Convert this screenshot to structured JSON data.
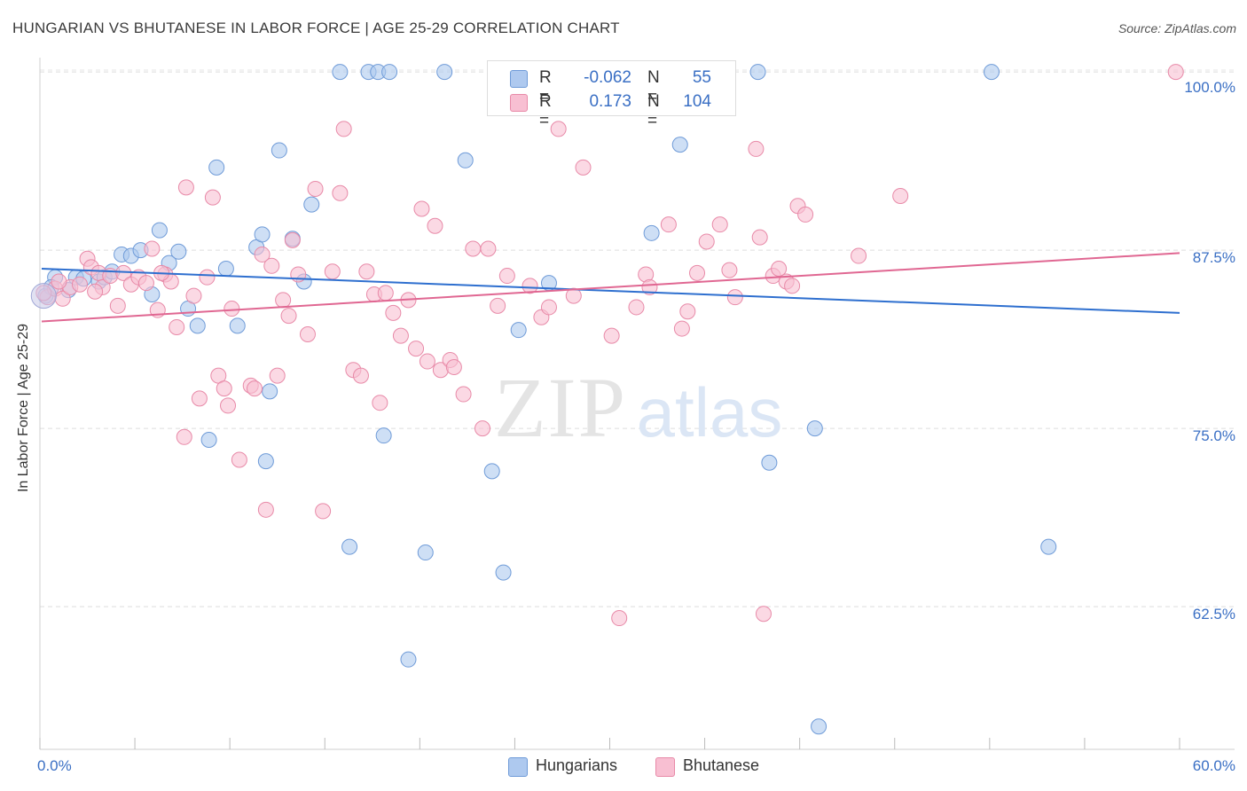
{
  "title": "HUNGARIAN VS BHUTANESE IN LABOR FORCE | AGE 25-29 CORRELATION CHART",
  "source": "Source: ZipAtlas.com",
  "watermark": {
    "zip": "ZIP",
    "atlas": "atlas"
  },
  "legend_top": {
    "rows": [
      {
        "r_label": "R =",
        "r_value": "-0.062",
        "n_label": "N =",
        "n_value": "55",
        "color": "#aec9ef"
      },
      {
        "r_label": "R =",
        "r_value": "0.173",
        "n_label": "N =",
        "n_value": "104",
        "color": "#f8bfd2"
      }
    ]
  },
  "legend_bottom": [
    {
      "label": "Hungarians",
      "color": "#aec9ef"
    },
    {
      "label": "Bhutanese",
      "color": "#f8bfd2"
    }
  ],
  "chart_data": {
    "type": "scatter",
    "title": "HUNGARIAN VS BHUTANESE IN LABOR FORCE | AGE 25-29 CORRELATION CHART",
    "xlabel": "",
    "ylabel": "In Labor Force | Age 25-29",
    "xlim": [
      0,
      60
    ],
    "ylim": [
      52.5,
      101
    ],
    "x_tick_labels": [
      "0.0%",
      "60.0%"
    ],
    "y_tick_labels": [
      "100.0%",
      "87.5%",
      "75.0%",
      "62.5%"
    ],
    "y_ticks": [
      100,
      87.5,
      75,
      62.5
    ],
    "grid": true,
    "legend_position": "top-center",
    "series": [
      {
        "name": "Hungarians",
        "color": "#aec9ef",
        "stroke": "#6f9bd8",
        "trend": {
          "x": [
            0,
            60
          ],
          "y": [
            86.2,
            83.1
          ],
          "color": "#2e6fcf"
        },
        "points": [
          [
            0.3,
            84.3
          ],
          [
            0.8,
            85.6
          ],
          [
            1.9,
            85.6
          ],
          [
            3.1,
            85.3
          ],
          [
            3.4,
            85.6
          ],
          [
            3.8,
            86.0
          ],
          [
            4.3,
            87.2
          ],
          [
            4.8,
            87.1
          ],
          [
            5.3,
            87.5
          ],
          [
            5.9,
            84.4
          ],
          [
            6.3,
            88.9
          ],
          [
            6.8,
            86.6
          ],
          [
            7.3,
            87.4
          ],
          [
            7.8,
            83.4
          ],
          [
            8.3,
            82.2
          ],
          [
            8.9,
            74.2
          ],
          [
            9.3,
            93.3
          ],
          [
            9.8,
            86.2
          ],
          [
            10.4,
            82.2
          ],
          [
            11.4,
            87.7
          ],
          [
            11.7,
            88.6
          ],
          [
            11.9,
            72.7
          ],
          [
            12.1,
            77.6
          ],
          [
            12.6,
            94.5
          ],
          [
            13.3,
            88.3
          ],
          [
            14.3,
            90.7
          ],
          [
            13.9,
            85.3
          ],
          [
            15.8,
            100.0
          ],
          [
            16.3,
            66.7
          ],
          [
            17.3,
            100.0
          ],
          [
            17.8,
            100.0
          ],
          [
            18.1,
            74.5
          ],
          [
            18.4,
            100.0
          ],
          [
            19.4,
            58.8
          ],
          [
            20.3,
            66.3
          ],
          [
            21.3,
            100.0
          ],
          [
            22.4,
            93.8
          ],
          [
            23.8,
            72.0
          ],
          [
            24.4,
            64.9
          ],
          [
            25.2,
            81.9
          ],
          [
            26.8,
            85.2
          ],
          [
            28.3,
            100.0
          ],
          [
            30.4,
            100.0
          ],
          [
            32.2,
            88.7
          ],
          [
            33.7,
            94.9
          ],
          [
            34.3,
            100.0
          ],
          [
            37.8,
            100.0
          ],
          [
            38.4,
            72.6
          ],
          [
            40.8,
            75.0
          ],
          [
            41.0,
            54.1
          ],
          [
            50.1,
            100.0
          ],
          [
            53.1,
            66.7
          ],
          [
            0.6,
            84.9
          ],
          [
            2.3,
            85.5
          ],
          [
            1.5,
            84.7
          ]
        ]
      },
      {
        "name": "Bhutanese",
        "color": "#f8bfd2",
        "stroke": "#e88aa8",
        "trend": {
          "x": [
            0,
            60
          ],
          "y": [
            82.5,
            87.3
          ],
          "color": "#e06792"
        },
        "points": [
          [
            0.4,
            84.2
          ],
          [
            0.8,
            84.8
          ],
          [
            1.2,
            84.1
          ],
          [
            1.6,
            84.9
          ],
          [
            2.1,
            85.1
          ],
          [
            2.5,
            86.9
          ],
          [
            2.7,
            86.3
          ],
          [
            3.1,
            85.9
          ],
          [
            3.3,
            84.9
          ],
          [
            3.7,
            85.7
          ],
          [
            4.1,
            83.6
          ],
          [
            4.4,
            85.9
          ],
          [
            4.8,
            85.1
          ],
          [
            5.2,
            85.6
          ],
          [
            5.6,
            85.2
          ],
          [
            5.9,
            87.6
          ],
          [
            6.2,
            83.3
          ],
          [
            6.6,
            85.8
          ],
          [
            6.9,
            85.3
          ],
          [
            7.2,
            82.1
          ],
          [
            7.6,
            74.4
          ],
          [
            7.7,
            91.9
          ],
          [
            8.1,
            84.3
          ],
          [
            8.4,
            77.1
          ],
          [
            8.8,
            85.6
          ],
          [
            9.1,
            91.2
          ],
          [
            9.4,
            78.7
          ],
          [
            9.7,
            77.8
          ],
          [
            9.9,
            76.6
          ],
          [
            10.1,
            83.4
          ],
          [
            10.5,
            72.8
          ],
          [
            11.1,
            78.0
          ],
          [
            11.3,
            77.8
          ],
          [
            11.7,
            87.2
          ],
          [
            11.9,
            69.3
          ],
          [
            12.2,
            86.4
          ],
          [
            12.5,
            78.7
          ],
          [
            12.8,
            84.0
          ],
          [
            13.1,
            82.9
          ],
          [
            13.3,
            88.2
          ],
          [
            13.6,
            85.8
          ],
          [
            14.1,
            81.6
          ],
          [
            14.5,
            91.8
          ],
          [
            14.9,
            69.2
          ],
          [
            15.4,
            86.0
          ],
          [
            15.8,
            91.5
          ],
          [
            16.0,
            96.0
          ],
          [
            16.5,
            79.1
          ],
          [
            16.9,
            78.7
          ],
          [
            17.2,
            86.0
          ],
          [
            17.6,
            84.4
          ],
          [
            17.9,
            76.8
          ],
          [
            18.2,
            84.5
          ],
          [
            18.6,
            83.1
          ],
          [
            19.0,
            81.5
          ],
          [
            19.4,
            84.0
          ],
          [
            19.8,
            80.6
          ],
          [
            20.1,
            90.4
          ],
          [
            20.4,
            79.7
          ],
          [
            20.8,
            89.2
          ],
          [
            21.1,
            79.1
          ],
          [
            21.6,
            79.8
          ],
          [
            21.8,
            79.3
          ],
          [
            22.3,
            77.4
          ],
          [
            22.8,
            87.6
          ],
          [
            23.3,
            75.0
          ],
          [
            23.6,
            87.6
          ],
          [
            24.1,
            83.6
          ],
          [
            24.6,
            85.7
          ],
          [
            25.8,
            85.0
          ],
          [
            26.4,
            82.8
          ],
          [
            26.8,
            83.5
          ],
          [
            27.3,
            96.0
          ],
          [
            28.1,
            84.3
          ],
          [
            28.6,
            93.3
          ],
          [
            30.1,
            81.5
          ],
          [
            30.5,
            61.7
          ],
          [
            31.4,
            83.5
          ],
          [
            31.9,
            85.8
          ],
          [
            32.1,
            84.9
          ],
          [
            33.1,
            89.3
          ],
          [
            33.8,
            82.0
          ],
          [
            34.1,
            83.2
          ],
          [
            34.6,
            85.9
          ],
          [
            35.1,
            88.1
          ],
          [
            35.8,
            89.3
          ],
          [
            36.3,
            86.1
          ],
          [
            36.6,
            84.2
          ],
          [
            37.7,
            94.6
          ],
          [
            37.9,
            88.4
          ],
          [
            38.1,
            62.0
          ],
          [
            38.6,
            85.7
          ],
          [
            38.9,
            86.2
          ],
          [
            39.3,
            85.3
          ],
          [
            39.6,
            85.0
          ],
          [
            39.9,
            90.6
          ],
          [
            40.3,
            90.0
          ],
          [
            43.1,
            87.1
          ],
          [
            45.3,
            91.3
          ],
          [
            59.8,
            100.0
          ],
          [
            0.2,
            84.5
          ],
          [
            1.0,
            85.3
          ],
          [
            2.9,
            84.6
          ],
          [
            6.4,
            85.9
          ]
        ]
      }
    ]
  }
}
